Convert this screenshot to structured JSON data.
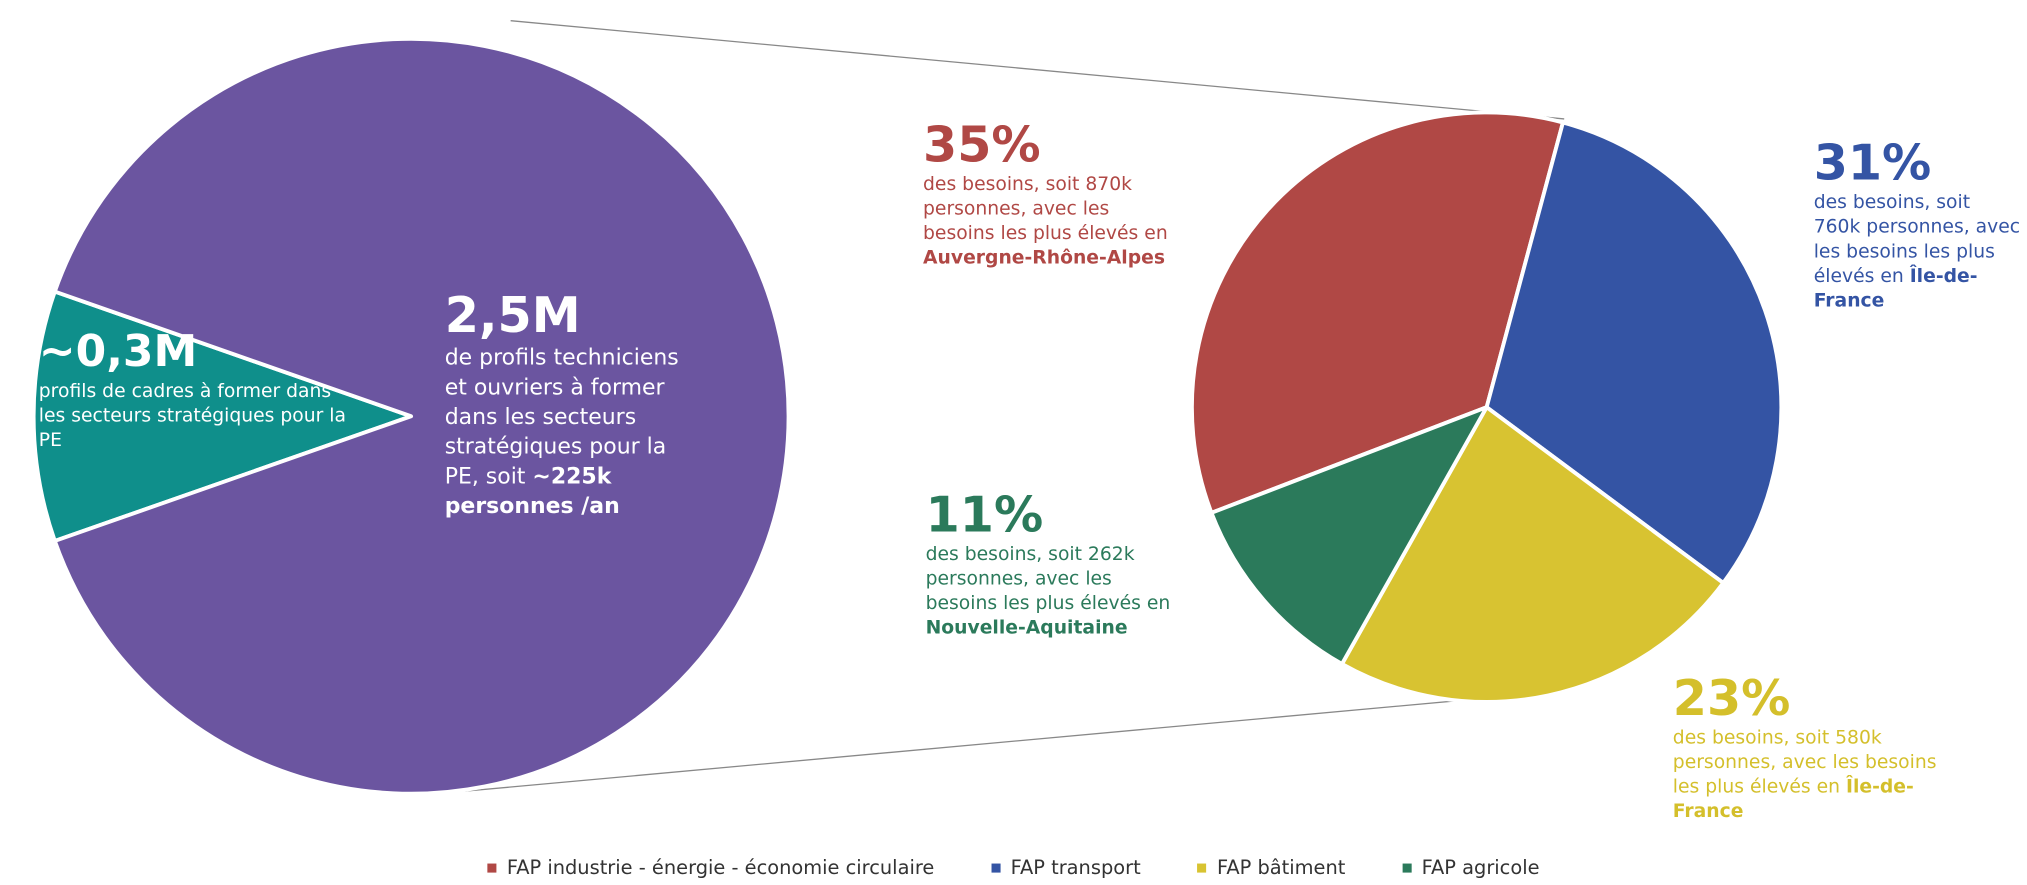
{
  "chart_data": [
    {
      "type": "pie",
      "values": [
        0.3,
        2.5
      ],
      "value_labels": [
        "~0,3M",
        "2,5M"
      ],
      "colors": [
        "#0f8f8b",
        "#6b55a0"
      ],
      "descriptions": [
        {
          "text": "profils de cadres à former dans les secteurs stratégiques pour la PE"
        },
        {
          "text": "de profils techniciens et ouvriers à former dans les secteurs stratégiques pour la PE, soit ",
          "highlight": "~225k personnes /an"
        }
      ]
    },
    {
      "type": "pie",
      "categories": [
        "FAP industrie - énergie - économie circulaire",
        "FAP transport",
        "FAP bâtiment",
        "FAP agricole"
      ],
      "values": [
        35,
        31,
        23,
        11
      ],
      "value_labels": [
        "35%",
        "31%",
        "23%",
        "11%"
      ],
      "colors": [
        "#b04845",
        "#3454a4",
        "#d8c331",
        "#2b7a5b"
      ],
      "descriptions": [
        {
          "text": "des besoins, soit 870k personnes, avec les besoins les plus élevés en ",
          "highlight": "Auvergne-Rhône-Alpes"
        },
        {
          "text": "des besoins, soit 760k personnes, avec les besoins les plus élevés en ",
          "highlight": "Île-de-France"
        },
        {
          "text": "des besoins, soit 580k personnes, avec les besoins les plus élevés en ",
          "highlight": "Île-de-France"
        },
        {
          "text": "des besoins, soit 262k personnes, avec les besoins les plus élevés en ",
          "highlight": "Nouvelle-Aquitaine"
        }
      ]
    }
  ]
}
